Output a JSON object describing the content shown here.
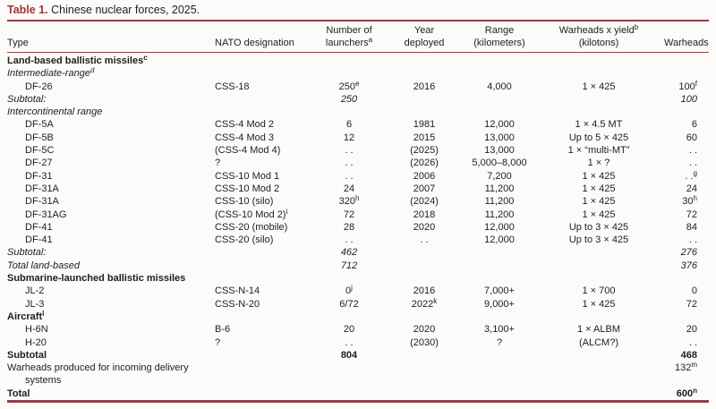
{
  "title": {
    "label": "Table 1.",
    "text": "Chinese nuclear forces, 2025."
  },
  "colors": {
    "accent_maroon": "#a23138",
    "rule_maroon": "#8f4049",
    "text": "#1e1e1c",
    "background": "#fbfbf9"
  },
  "table": {
    "col_keys": [
      "type",
      "nato-designation",
      "number-of-launchers",
      "year-deployed",
      "range-kilometers",
      "warheads-x-yield",
      "warheads"
    ],
    "columns": [
      {
        "lines": [
          "Type"
        ]
      },
      {
        "lines": [
          "NATO designation"
        ]
      },
      {
        "lines": [
          "Number of",
          "launchers{a}"
        ]
      },
      {
        "lines": [
          "Year",
          "deployed"
        ]
      },
      {
        "lines": [
          "Range",
          "(kilometers)"
        ]
      },
      {
        "lines": [
          "Warheads x yield{b}",
          "(kilotons)"
        ]
      },
      {
        "lines": [
          "Warheads"
        ]
      }
    ],
    "rows": [
      {
        "kind": "section",
        "cells": [
          "Land-based ballistic missiles{c}",
          "",
          "",
          "",
          "",
          "",
          ""
        ]
      },
      {
        "kind": "subsection",
        "cells": [
          "Intermediate-range{d}",
          "",
          "",
          "",
          "",
          "",
          ""
        ]
      },
      {
        "kind": "data",
        "cells": [
          "DF-26",
          "CSS-18",
          "250{e}",
          "2016",
          "4,000",
          "1 × 425",
          "100{f}"
        ]
      },
      {
        "kind": "subtotal",
        "cells": [
          "Subtotal:",
          "",
          "250",
          "",
          "",
          "",
          "100"
        ]
      },
      {
        "kind": "subsection",
        "cells": [
          "Intercontinental range",
          "",
          "",
          "",
          "",
          "",
          ""
        ]
      },
      {
        "kind": "data",
        "cells": [
          "DF-5A",
          "CSS-4 Mod 2",
          "6",
          "1981",
          "12,000",
          "1 × 4.5 MT",
          "6"
        ]
      },
      {
        "kind": "data",
        "cells": [
          "DF-5B",
          "CSS-4 Mod 3",
          "12",
          "2015",
          "13,000",
          "Up to 5 × 425",
          "60"
        ]
      },
      {
        "kind": "data",
        "cells": [
          "DF-5C",
          "(CSS-4 Mod 4)",
          ". .",
          "(2025)",
          "13,000",
          "1 × “multi-MT”",
          ". ."
        ]
      },
      {
        "kind": "data",
        "cells": [
          "DF-27",
          "?",
          ". .",
          "(2026)",
          "5,000–8,000",
          "1 × ?",
          ". ."
        ]
      },
      {
        "kind": "data",
        "cells": [
          "DF-31",
          "CSS-10 Mod 1",
          ". .",
          "2006",
          "7,200",
          "1 × 425",
          ". .{g}"
        ]
      },
      {
        "kind": "data",
        "cells": [
          "DF-31A",
          "CSS-10 Mod 2",
          "24",
          "2007",
          "11,200",
          "1 × 425",
          "24"
        ]
      },
      {
        "kind": "data",
        "cells": [
          "DF-31A",
          "CSS-10 (silo)",
          "320{h}",
          "(2024)",
          "11,200",
          "1 × 425",
          "30{h}"
        ]
      },
      {
        "kind": "data",
        "cells": [
          "DF-31AG",
          "(CSS-10 Mod 2){i}",
          "72",
          "2018",
          "11,200",
          "1 × 425",
          "72"
        ]
      },
      {
        "kind": "data",
        "cells": [
          "DF-41",
          "CSS-20 (mobile)",
          "28",
          "2020",
          "12,000",
          "Up to 3 × 425",
          "84"
        ]
      },
      {
        "kind": "data",
        "cells": [
          "DF-41",
          "CSS-20 (silo)",
          ". .",
          ". .",
          "12,000",
          "Up to 3 × 425",
          ". ."
        ]
      },
      {
        "kind": "subtotal",
        "cells": [
          "Subtotal:",
          "",
          "462",
          "",
          "",
          "",
          "276"
        ]
      },
      {
        "kind": "subtotal",
        "cells": [
          "Total land-based",
          "",
          "712",
          "",
          "",
          "",
          "376"
        ]
      },
      {
        "kind": "section",
        "cells": [
          "Submarine-launched ballistic missiles",
          "",
          "",
          "",
          "",
          "",
          ""
        ]
      },
      {
        "kind": "data",
        "cells": [
          "JL-2",
          "CSS-N-14",
          "0{j}",
          "2016",
          "7,000+",
          "1 × 700",
          "0"
        ]
      },
      {
        "kind": "data",
        "cells": [
          "JL-3",
          "CSS-N-20",
          "6/72",
          "2022{k}",
          "9,000+",
          "1 × 425",
          "72"
        ]
      },
      {
        "kind": "section",
        "cells": [
          "Aircraft{l}",
          "",
          "",
          "",
          "",
          "",
          ""
        ]
      },
      {
        "kind": "data",
        "cells": [
          "H-6N",
          "B-6",
          "20",
          "2020",
          "3,100+",
          "1 × ALBM",
          "20"
        ]
      },
      {
        "kind": "data",
        "cells": [
          "H-20",
          "?",
          ". .",
          "(2030)",
          "?",
          "(ALCM?)",
          ". ."
        ]
      },
      {
        "kind": "boldrow",
        "cells": [
          "Subtotal",
          "",
          "804",
          "",
          "",
          "",
          "468"
        ]
      },
      {
        "kind": "plain",
        "cells": [
          "Warheads produced for incoming delivery systems",
          "",
          "",
          "",
          "",
          "",
          "132{m}"
        ]
      },
      {
        "kind": "boldrow",
        "cells": [
          "Total",
          "",
          "",
          "",
          "",
          "",
          "600{n}"
        ]
      }
    ]
  }
}
